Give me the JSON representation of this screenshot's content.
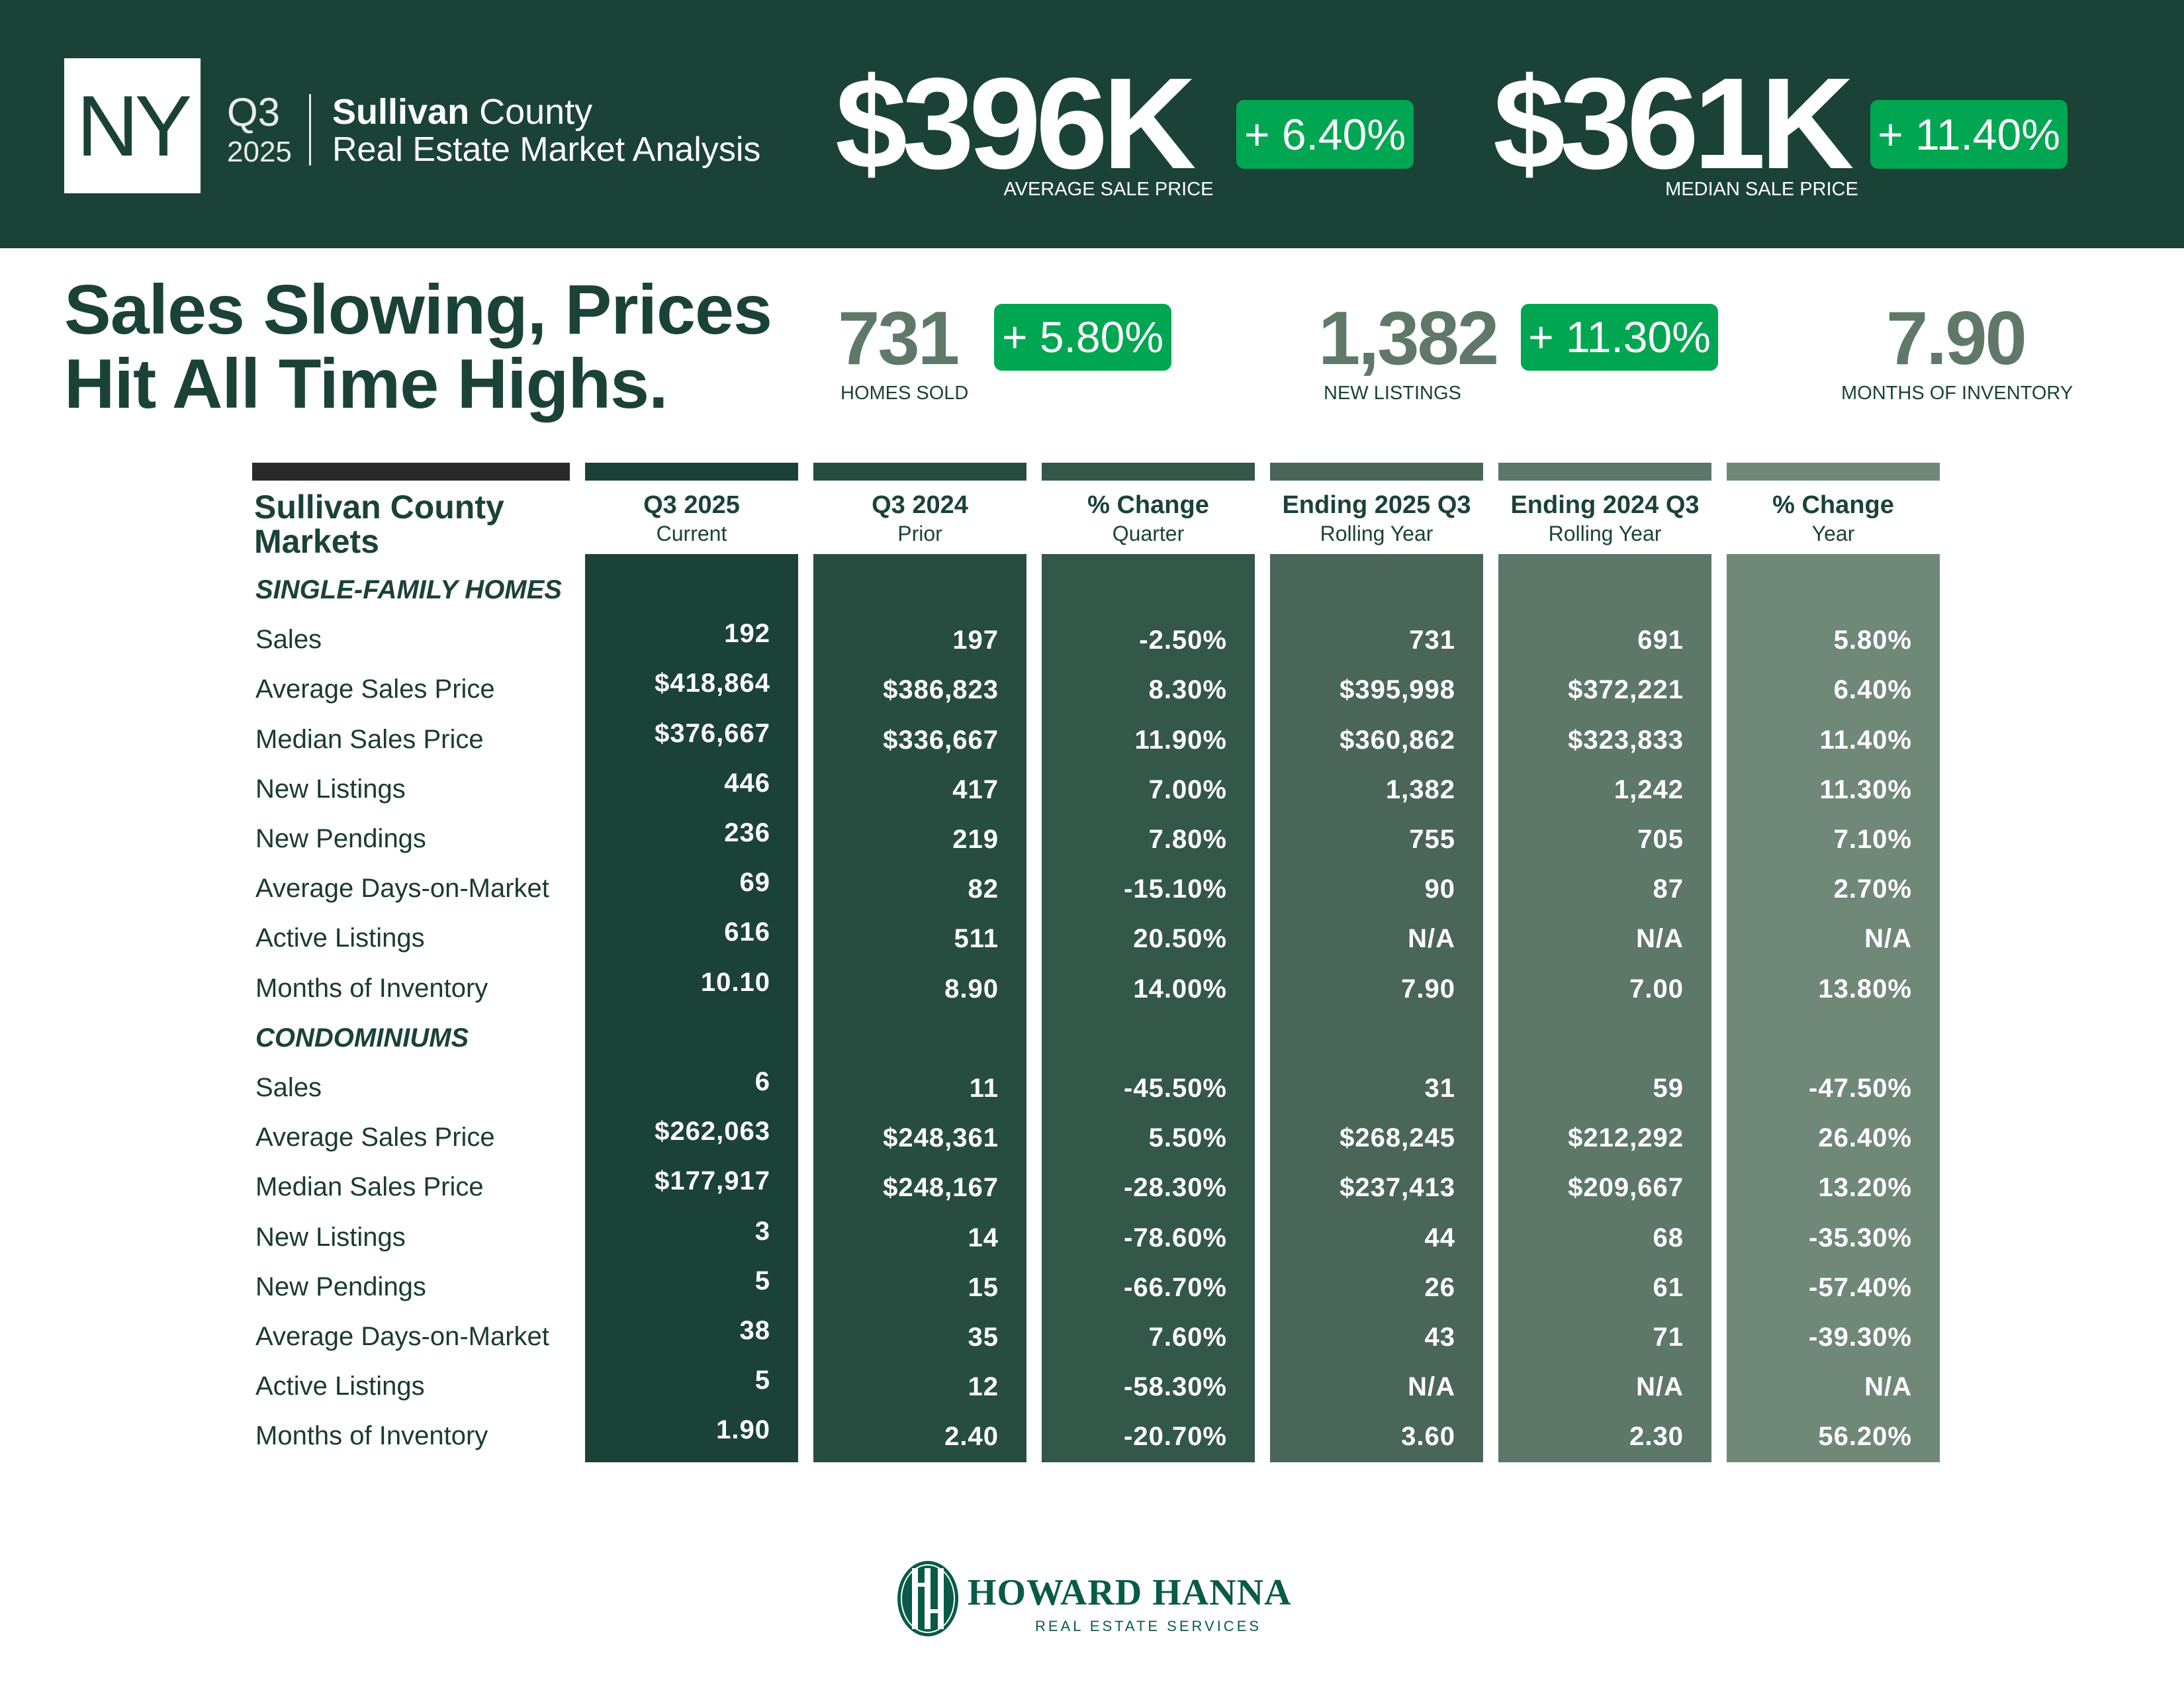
{
  "header": {
    "state": "NY",
    "quarter": "Q3",
    "year": "2025",
    "county_bold": "Sullivan",
    "county_rest": " County",
    "subtitle": "Real Estate Market Analysis",
    "avg_price": {
      "value": "$396K",
      "change": "+ 6.40%",
      "label": "AVERAGE SALE PRICE"
    },
    "median_price": {
      "value": "$361K",
      "change": "+ 11.40%",
      "label": "MEDIAN SALE PRICE"
    }
  },
  "headline": {
    "line1": "Sales Slowing, Prices",
    "line2": "Hit All Time Highs."
  },
  "kpis": {
    "homes_sold": {
      "value": "731",
      "change": "+ 5.80%",
      "label": "HOMES SOLD"
    },
    "new_listings": {
      "value": "1,382",
      "change": "+ 11.30%",
      "label": "NEW LISTINGS"
    },
    "months_inventory": {
      "value": "7.90",
      "label": "MONTHS OF INVENTORY"
    }
  },
  "table": {
    "title_line1": "Sullivan County",
    "title_line2": "Markets",
    "columns": [
      {
        "title": "Q3 2025",
        "subtitle": "Current",
        "color": "#1b4237"
      },
      {
        "title": "Q3 2024",
        "subtitle": "Prior",
        "color": "#264d40"
      },
      {
        "title": "% Change",
        "subtitle": "Quarter",
        "color": "#335748"
      },
      {
        "title": "Ending 2025 Q3",
        "subtitle": "Rolling Year",
        "color": "#4a6659"
      },
      {
        "title": "Ending 2024 Q3",
        "subtitle": "Rolling Year",
        "color": "#5d7769"
      },
      {
        "title": "% Change",
        "subtitle": "Year",
        "color": "#708878"
      }
    ],
    "sections": [
      {
        "name": "SINGLE-FAMILY HOMES",
        "rows": [
          {
            "label": "Sales",
            "values": [
              "192",
              "197",
              "-2.50%",
              "731",
              "691",
              "5.80%"
            ]
          },
          {
            "label": "Average Sales Price",
            "values": [
              "$418,864",
              "$386,823",
              "8.30%",
              "$395,998",
              "$372,221",
              "6.40%"
            ]
          },
          {
            "label": "Median Sales Price",
            "values": [
              "$376,667",
              "$336,667",
              "11.90%",
              "$360,862",
              "$323,833",
              "11.40%"
            ]
          },
          {
            "label": "New Listings",
            "values": [
              "446",
              "417",
              "7.00%",
              "1,382",
              "1,242",
              "11.30%"
            ]
          },
          {
            "label": "New Pendings",
            "values": [
              "236",
              "219",
              "7.80%",
              "755",
              "705",
              "7.10%"
            ]
          },
          {
            "label": "Average Days-on-Market",
            "values": [
              "69",
              "82",
              "-15.10%",
              "90",
              "87",
              "2.70%"
            ]
          },
          {
            "label": "Active Listings",
            "values": [
              "616",
              "511",
              "20.50%",
              "N/A",
              "N/A",
              "N/A"
            ]
          },
          {
            "label": "Months of Inventory",
            "values": [
              "10.10",
              "8.90",
              "14.00%",
              "7.90",
              "7.00",
              "13.80%"
            ]
          }
        ]
      },
      {
        "name": "CONDOMINIUMS",
        "rows": [
          {
            "label": "Sales",
            "values": [
              "6",
              "11",
              "-45.50%",
              "31",
              "59",
              "-47.50%"
            ]
          },
          {
            "label": "Average Sales Price",
            "values": [
              "$262,063",
              "$248,361",
              "5.50%",
              "$268,245",
              "$212,292",
              "26.40%"
            ]
          },
          {
            "label": "Median Sales Price",
            "values": [
              "$177,917",
              "$248,167",
              "-28.30%",
              "$237,413",
              "$209,667",
              "13.20%"
            ]
          },
          {
            "label": "New Listings",
            "values": [
              "3",
              "14",
              "-78.60%",
              "44",
              "68",
              "-35.30%"
            ]
          },
          {
            "label": "New Pendings",
            "values": [
              "5",
              "15",
              "-66.70%",
              "26",
              "61",
              "-57.40%"
            ]
          },
          {
            "label": "Average Days-on-Market",
            "values": [
              "38",
              "35",
              "7.60%",
              "43",
              "71",
              "-39.30%"
            ]
          },
          {
            "label": "Active Listings",
            "values": [
              "5",
              "12",
              "-58.30%",
              "N/A",
              "N/A",
              "N/A"
            ]
          },
          {
            "label": "Months of Inventory",
            "values": [
              "1.90",
              "2.40",
              "-20.70%",
              "3.60",
              "2.30",
              "56.20%"
            ]
          }
        ]
      }
    ]
  },
  "footer": {
    "brand": "HOWARD HANNA",
    "tagline": "REAL ESTATE SERVICES"
  },
  "colors": {
    "header_bg": "#1b4237",
    "badge": "#00a651",
    "kpi": "#5f7868"
  }
}
